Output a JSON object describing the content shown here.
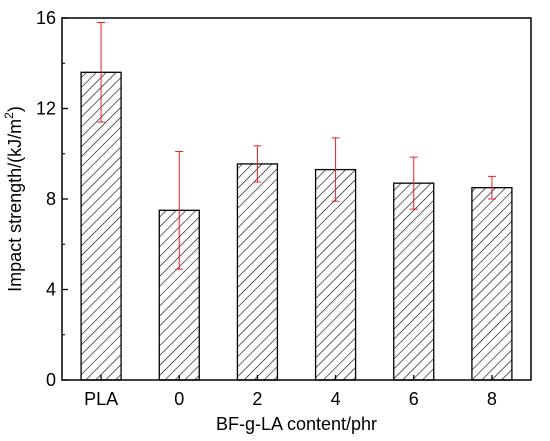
{
  "chart_data": {
    "type": "bar",
    "xlabel": "BF-g-LA content/phr",
    "ylabel_main": "Impact strength/(kJ/m",
    "ylabel_sup": "2",
    "ylabel_close": ")",
    "categories": [
      "PLA",
      "0",
      "2",
      "4",
      "6",
      "8"
    ],
    "values": [
      13.6,
      7.5,
      9.55,
      9.3,
      8.7,
      8.5
    ],
    "errors": [
      2.2,
      2.6,
      0.8,
      1.4,
      1.15,
      0.5
    ],
    "ylim": [
      0,
      16
    ],
    "yticks": [
      0,
      4,
      8,
      12,
      16
    ],
    "bar_fill": "hatched",
    "bar_stroke_color": "#000000",
    "error_bar_color": "#e8202a",
    "grid": false
  }
}
